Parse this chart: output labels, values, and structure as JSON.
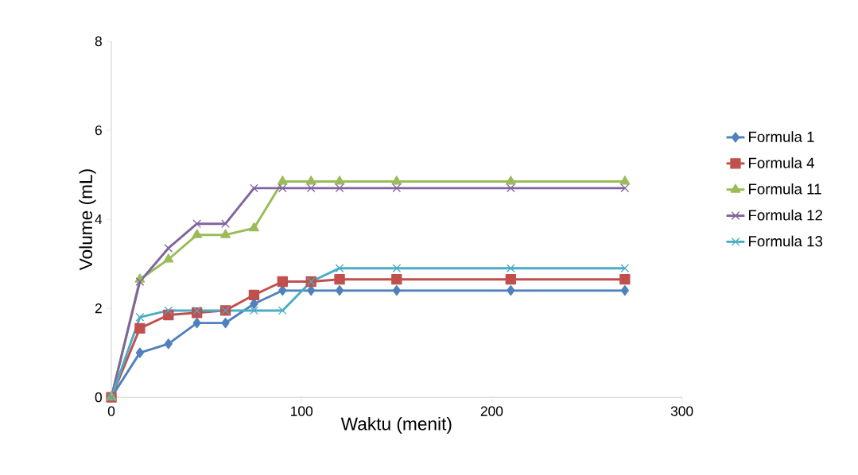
{
  "chart_data": {
    "type": "line",
    "xlabel": "Waktu (menit)",
    "ylabel": "Volume (mL)",
    "x": [
      0,
      15,
      30,
      45,
      60,
      75,
      90,
      105,
      120,
      150,
      210,
      270
    ],
    "series": [
      {
        "name": "Formula 1",
        "color": "#4f81bd",
        "marker": "diamond",
        "values": [
          0,
          1.0,
          1.2,
          1.67,
          1.67,
          2.1,
          2.4,
          2.4,
          2.4,
          2.4,
          2.4,
          2.4
        ]
      },
      {
        "name": "Formula 4",
        "color": "#c0504d",
        "marker": "square",
        "values": [
          0,
          1.55,
          1.85,
          1.9,
          1.95,
          2.3,
          2.6,
          2.6,
          2.65,
          2.65,
          2.65,
          2.65
        ]
      },
      {
        "name": "Formula 11",
        "color": "#9bbb59",
        "marker": "triangle",
        "values": [
          0,
          2.65,
          3.1,
          3.65,
          3.65,
          3.8,
          4.85,
          4.85,
          4.85,
          4.85,
          4.85,
          4.85
        ]
      },
      {
        "name": "Formula 12",
        "color": "#8064a2",
        "marker": "cross",
        "values": [
          0,
          2.6,
          3.35,
          3.9,
          3.9,
          4.7,
          4.7,
          4.7,
          4.7,
          4.7,
          4.7,
          4.7
        ]
      },
      {
        "name": "Formula 13",
        "color": "#4bacc6",
        "marker": "cross",
        "values": [
          0,
          1.8,
          1.95,
          1.95,
          1.95,
          1.95,
          1.95,
          2.6,
          2.9,
          2.9,
          2.9,
          2.9
        ]
      }
    ],
    "xlim": [
      0,
      300
    ],
    "ylim": [
      0,
      8
    ],
    "xticks": [
      0,
      100,
      200,
      300
    ],
    "yticks": [
      0,
      2,
      4,
      6,
      8
    ],
    "grid": false,
    "legend": "right",
    "line_style": "solid"
  }
}
